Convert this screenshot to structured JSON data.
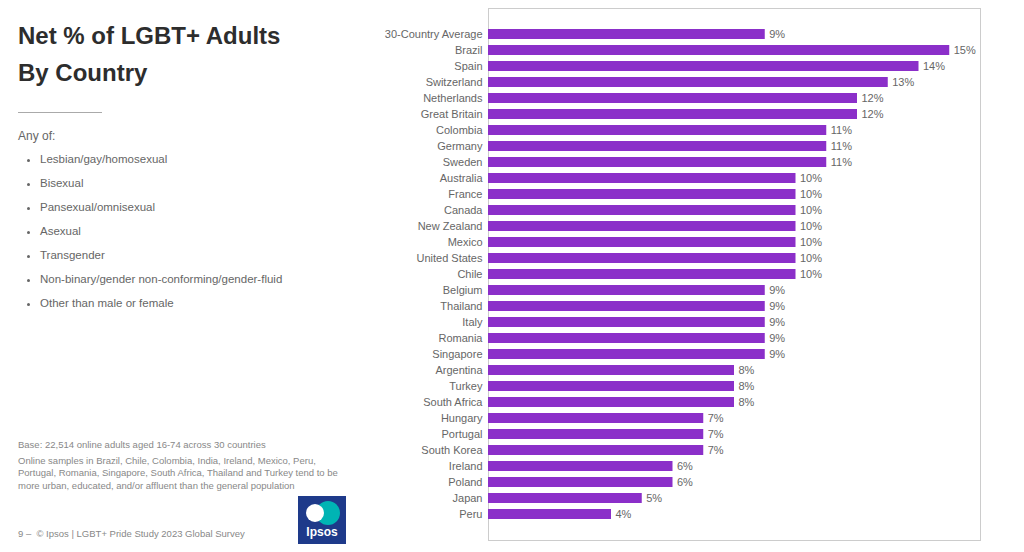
{
  "chart_data": {
    "type": "bar",
    "orientation": "horizontal",
    "title": "Net % of LGBT+ Adults",
    "subtitle": "By Country",
    "categories": [
      "30-Country Average",
      "Brazil",
      "Spain",
      "Switzerland",
      "Netherlands",
      "Great Britain",
      "Colombia",
      "Germany",
      "Sweden",
      "Australia",
      "France",
      "Canada",
      "New Zealand",
      "Mexico",
      "United States",
      "Chile",
      "Belgium",
      "Thailand",
      "Italy",
      "Romania",
      "Singapore",
      "Argentina",
      "Turkey",
      "South Africa",
      "Hungary",
      "Portugal",
      "South Korea",
      "Ireland",
      "Poland",
      "Japan",
      "Peru"
    ],
    "values": [
      9,
      15,
      14,
      13,
      12,
      12,
      11,
      11,
      11,
      10,
      10,
      10,
      10,
      10,
      10,
      10,
      9,
      9,
      9,
      9,
      9,
      8,
      8,
      8,
      7,
      7,
      7,
      6,
      6,
      5,
      4
    ],
    "value_labels": [
      "9%",
      "15%",
      "14%",
      "13%",
      "12%",
      "12%",
      "11%",
      "11%",
      "11%",
      "10%",
      "10%",
      "10%",
      "10%",
      "10%",
      "10%",
      "10%",
      "9%",
      "9%",
      "9%",
      "9%",
      "9%",
      "8%",
      "8%",
      "8%",
      "7%",
      "7%",
      "7%",
      "6%",
      "6%",
      "5%",
      "4%"
    ],
    "data_labels": true,
    "color": "#8b2fc9",
    "xlim": [
      0,
      16
    ],
    "grid": false,
    "tick_labels": "y",
    "annotations": [
      "Any of:",
      "Lesbian/gay/homosexual",
      "Bisexual",
      "Pansexual/omnisexual",
      "Asexual",
      "Transgender",
      "Non-binary/gender non-conforming/gender-fluid",
      "Other than male or female",
      "Base: 22,514 online adults aged 16-74 across 30 countries",
      "Online samples in Brazil, Chile, Colombia, India, Ireland, Mexico, Peru, Portugal, Romania, Singapore, South Africa, Thailand and Turkey tend to be more urban, educated, and/or affluent than the general population",
      "9 –  © Ipsos | LGBT+ Pride Study 2023 Global Survey",
      "Ipsos"
    ]
  }
}
